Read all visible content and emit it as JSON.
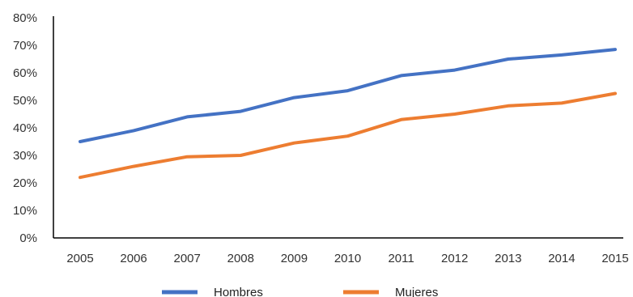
{
  "chart_data": {
    "type": "line",
    "title": "",
    "xlabel": "",
    "ylabel": "",
    "categories": [
      "2005",
      "2006",
      "2007",
      "2008",
      "2009",
      "2010",
      "2011",
      "2012",
      "2013",
      "2014",
      "2015"
    ],
    "ylim": [
      0,
      80
    ],
    "y_ticks": [
      "0%",
      "10%",
      "20%",
      "30%",
      "40%",
      "50%",
      "60%",
      "70%",
      "80%"
    ],
    "grid": false,
    "legend_position": "bottom",
    "series": [
      {
        "name": "Hombres",
        "color": "#4472C4",
        "values": [
          35,
          39,
          44,
          46,
          51,
          53.5,
          59,
          61,
          65,
          66.5,
          68.5
        ]
      },
      {
        "name": "Mujeres",
        "color": "#ED7D31",
        "values": [
          22,
          26,
          29.5,
          30,
          34.5,
          37,
          43,
          45,
          48,
          49,
          52.5
        ]
      }
    ]
  }
}
